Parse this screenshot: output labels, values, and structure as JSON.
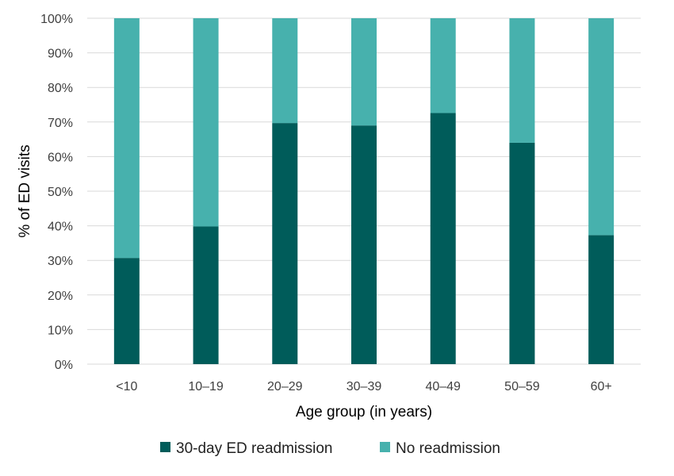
{
  "chart_data": {
    "type": "bar",
    "stacked": true,
    "categories": [
      "<10",
      "10–19",
      "20–29",
      "30–39",
      "40–49",
      "50–59",
      "60+"
    ],
    "series": [
      {
        "name": "30-day ED readmission",
        "color": "#005c5a",
        "values": [
          30.7,
          39.8,
          69.7,
          69.0,
          72.6,
          64.0,
          37.3
        ]
      },
      {
        "name": "No readmission",
        "color": "#47b1ad",
        "values": [
          69.3,
          60.2,
          30.3,
          31.0,
          27.4,
          36.0,
          62.7
        ]
      }
    ],
    "xlabel": "Age group (in years)",
    "ylabel": "% of ED visits",
    "ylim": [
      0,
      100
    ],
    "yticks": [
      "0%",
      "10%",
      "20%",
      "30%",
      "40%",
      "50%",
      "60%",
      "70%",
      "80%",
      "90%",
      "100%"
    ],
    "grid": true,
    "legend": "bottom"
  }
}
